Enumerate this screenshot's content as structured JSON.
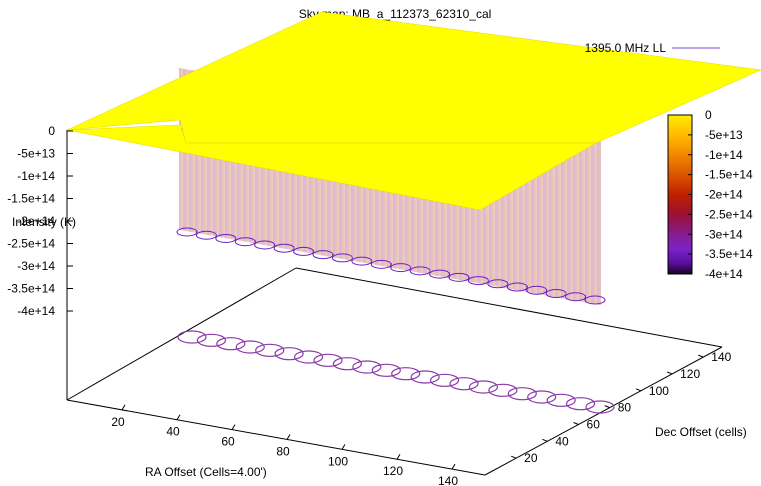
{
  "chart_data": {
    "type": "surface",
    "title": "Sky map: MB_a_112373_62310_cal",
    "legend": [
      {
        "label": "1395.0 MHz LL",
        "color": "#7a4cc8",
        "placement": "top-right"
      }
    ],
    "axes": {
      "x": {
        "label": "RA Offset (Cells=4.00')",
        "ticks": [
          "20",
          "40",
          "60",
          "80",
          "100",
          "120",
          "140"
        ]
      },
      "y": {
        "label": "Dec Offset (cells)",
        "ticks": [
          "20",
          "40",
          "60",
          "80",
          "100",
          "120",
          "140"
        ]
      },
      "z": {
        "label": "Intensity (K)",
        "ticks": [
          "0",
          "-5e+13",
          "-1e+14",
          "-1.5e+14",
          "-2e+14",
          "-2.5e+14",
          "-3e+14",
          "-3.5e+14",
          "-4e+14"
        ],
        "range": [
          -400000000000000.0,
          0
        ]
      }
    },
    "colorbar": {
      "ticks": [
        "0",
        "-5e+13",
        "-1e+14",
        "-1.5e+14",
        "-2e+14",
        "-2.5e+14",
        "-3e+14",
        "-3.5e+14",
        "-4e+14"
      ],
      "palette": [
        "#ffee00",
        "#ffb000",
        "#e06000",
        "#c02000",
        "#9e1030",
        "#8a1a7a",
        "#7a22c8",
        "#5a10a0",
        "#1a0020"
      ]
    },
    "surface_value": 0,
    "dip_value": -400000000000000.0,
    "grid": false
  }
}
